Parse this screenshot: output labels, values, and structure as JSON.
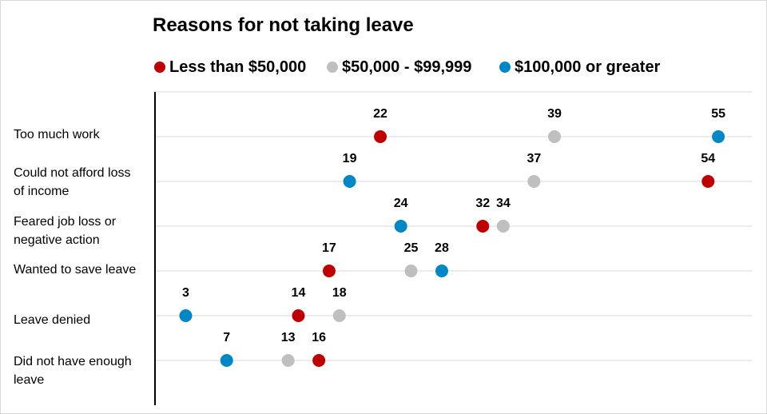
{
  "chart_data": {
    "type": "scatter",
    "title": "Reasons for not taking leave",
    "xlabel": "",
    "ylabel": "",
    "legend_position": "top",
    "grid": "horizontal",
    "categories": [
      "Too much work",
      "Could not afford loss of income",
      "Feared job loss or negative action",
      "Wanted to save leave",
      "Leave denied",
      "Did not have enough leave"
    ],
    "series": [
      {
        "name": "Less than $50,000",
        "color": "#c00000",
        "values": [
          22,
          54,
          32,
          17,
          14,
          16
        ]
      },
      {
        "name": "$50,000 - $99,999",
        "color": "#bfbfbf",
        "values": [
          39,
          37,
          34,
          25,
          18,
          13
        ]
      },
      {
        "name": "$100,000 or greater",
        "color": "#0087c8",
        "values": [
          55,
          19,
          24,
          28,
          3,
          7
        ]
      }
    ]
  }
}
